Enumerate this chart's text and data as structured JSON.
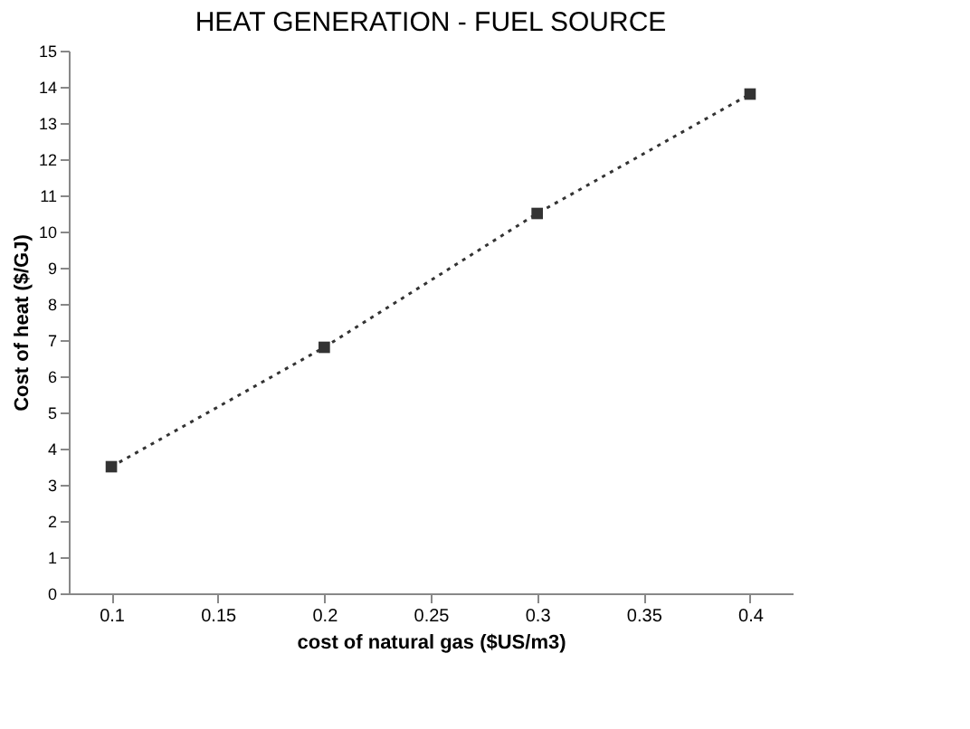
{
  "chart_data": {
    "type": "line",
    "title": "HEAT GENERATION - FUEL SOURCE",
    "xlabel": "cost of natural gas ($US/m3)",
    "ylabel": "Cost of heat ($/GJ)",
    "x": [
      0.1,
      0.2,
      0.3,
      0.4
    ],
    "series": [
      {
        "color": "#333333",
        "values": [
          3.5,
          6.8,
          10.5,
          13.8
        ]
      }
    ],
    "xlim": [
      0.08,
      0.42
    ],
    "xticks": [
      0.1,
      0.15,
      0.2,
      0.25,
      0.3,
      0.35,
      0.4
    ],
    "ylim": [
      0,
      15
    ],
    "yticks": [
      0,
      1,
      2,
      3,
      4,
      5,
      6,
      7,
      8,
      9,
      10,
      11,
      12,
      13,
      14,
      15
    ],
    "marker": "square",
    "line_style": "dotted",
    "grid": false
  }
}
